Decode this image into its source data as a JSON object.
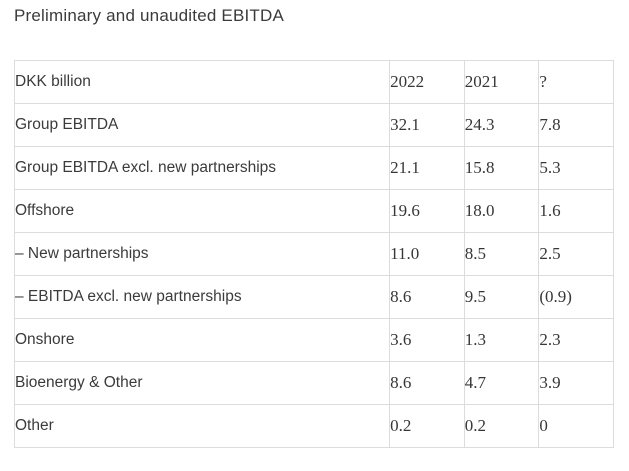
{
  "page": {
    "title": "Preliminary and unaudited EBITDA"
  },
  "table": {
    "header": {
      "label": "DKK billion",
      "columns": [
        "2022",
        "2021",
        "?"
      ]
    },
    "rows": [
      {
        "label": "Group EBITDA",
        "indent": 0,
        "values": [
          "32.1",
          "24.3",
          "7.8"
        ]
      },
      {
        "label": "Group EBITDA excl. new partnerships",
        "indent": 0,
        "values": [
          "21.1",
          "15.8",
          "5.3"
        ]
      },
      {
        "label": "Offshore",
        "indent": 1,
        "values": [
          "19.6",
          "18.0",
          "1.6"
        ]
      },
      {
        "label": "– New partnerships",
        "indent": 2,
        "values": [
          "11.0",
          "8.5",
          "2.5"
        ]
      },
      {
        "label": "– EBITDA excl. new partnerships",
        "indent": 2,
        "values": [
          "8.6",
          "9.5",
          "(0.9)"
        ]
      },
      {
        "label": "Onshore",
        "indent": 1,
        "values": [
          "3.6",
          "1.3",
          "2.3"
        ]
      },
      {
        "label": "Bioenergy & Other",
        "indent": 1,
        "values": [
          "8.6",
          "4.7",
          "3.9"
        ]
      },
      {
        "label": "Other",
        "indent": 1,
        "values": [
          "0.2",
          "0.2",
          "0"
        ]
      }
    ]
  },
  "colors": {
    "text": "#3b3b3b",
    "border": "#dcdcdc",
    "background": "#ffffff"
  }
}
